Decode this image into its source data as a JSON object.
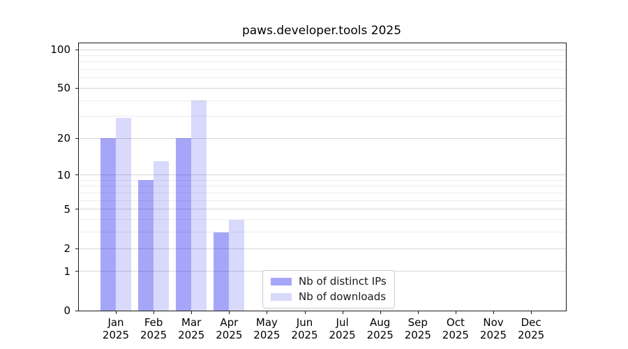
{
  "chart_data": {
    "type": "bar",
    "title": "paws.developer.tools 2025",
    "categories": [
      "Jan",
      "Feb",
      "Mar",
      "Apr",
      "May",
      "Jun",
      "Jul",
      "Aug",
      "Sep",
      "Oct",
      "Nov",
      "Dec"
    ],
    "category_year": "2025",
    "series": [
      {
        "name": "Nb of distinct IPs",
        "color": "#a6a6f9",
        "rgba": "rgba(0,0,238,0.35)",
        "values": [
          20,
          9,
          20,
          3,
          0,
          0,
          0,
          0,
          0,
          0,
          0,
          0
        ]
      },
      {
        "name": "Nb of downloads",
        "color": "#d9d9fc",
        "rgba": "rgba(0,0,238,0.15)",
        "values": [
          29,
          13,
          40,
          4,
          0,
          0,
          0,
          0,
          0,
          0,
          0,
          0
        ]
      }
    ],
    "y_axis": {
      "scale": "log1p",
      "major_ticks": [
        0,
        1,
        2,
        5,
        10,
        20,
        50,
        100
      ],
      "minor_gridlines": [
        3,
        4,
        6,
        7,
        8,
        9,
        30,
        40,
        60,
        70,
        80,
        90
      ],
      "top_value": 110
    },
    "grid": true,
    "legend": {
      "position": "lower-center"
    },
    "colors": {
      "major_grid": "#d6d6d6",
      "minor_grid": "#ededed",
      "axis": "#1a1a1a",
      "background": "#ffffff"
    }
  }
}
